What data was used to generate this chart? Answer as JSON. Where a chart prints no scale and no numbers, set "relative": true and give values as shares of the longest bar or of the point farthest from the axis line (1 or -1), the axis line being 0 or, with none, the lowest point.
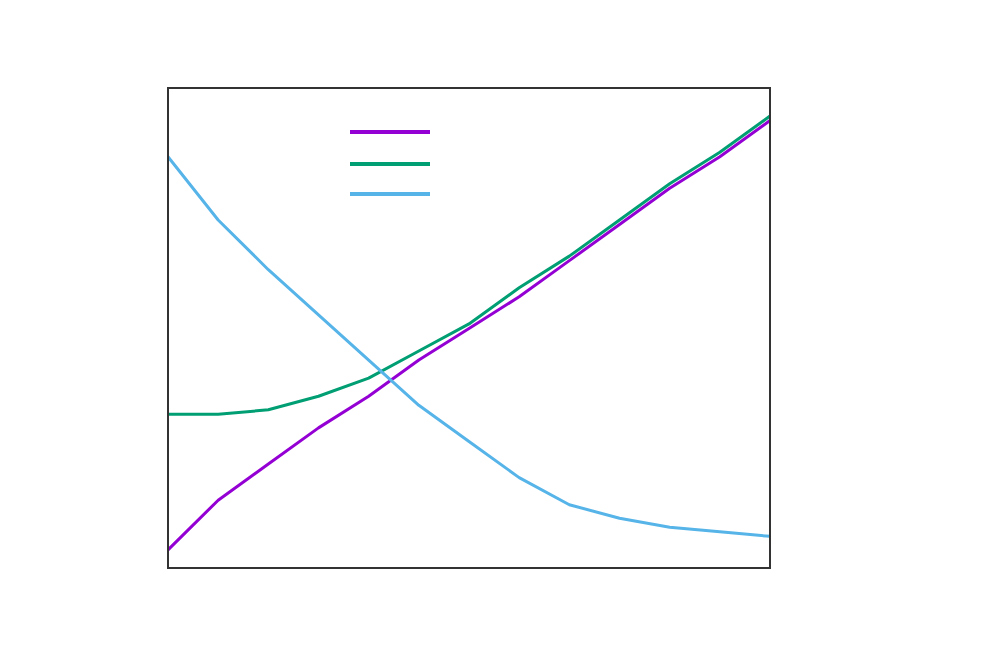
{
  "chart_data": {
    "type": "line",
    "relative": true,
    "categories": [
      null,
      null,
      null,
      null,
      null,
      null,
      null,
      null,
      null,
      null,
      null,
      null,
      null
    ],
    "legend": false,
    "marker": "none",
    "line_style": "solid",
    "series": [
      {
        "color": "#9400d3",
        "values": [
          0.04,
          0.15,
          0.23,
          0.31,
          0.38,
          0.46,
          0.53,
          0.6,
          0.68,
          0.76,
          0.84,
          0.91,
          0.99
        ]
      },
      {
        "color": "#009e73",
        "values": [
          0.34,
          0.34,
          0.35,
          0.38,
          0.42,
          0.48,
          0.54,
          0.62,
          0.69,
          0.77,
          0.85,
          0.92,
          1.0
        ]
      },
      {
        "color": "#56b4e9",
        "values": [
          0.91,
          0.77,
          0.66,
          0.56,
          0.46,
          0.36,
          0.28,
          0.2,
          0.14,
          0.11,
          0.09,
          0.08,
          0.07
        ]
      }
    ]
  }
}
